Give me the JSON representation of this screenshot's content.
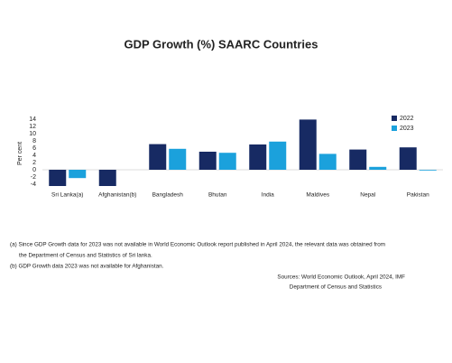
{
  "chart_data": {
    "type": "bar",
    "title": "GDP Growth (%)  SAARC Countries",
    "y_label": "Per cent",
    "categories": [
      "Sri Lanka(a)",
      "Afghanistan(b)",
      "Bangladesh",
      "Bhutan",
      "India",
      "Maldives",
      "Nepal",
      "Pakistan"
    ],
    "series": [
      {
        "name": "2022",
        "color": "#172a63",
        "values": [
          -4.5,
          -4.5,
          7.1,
          5.0,
          7.0,
          13.9,
          5.6,
          6.2
        ]
      },
      {
        "name": "2023",
        "color": "#1ba1dc",
        "values": [
          -2.3,
          null,
          5.8,
          4.7,
          7.8,
          4.4,
          0.8,
          -0.2
        ]
      }
    ],
    "ylim": [
      -5,
      15
    ],
    "yticks": [
      -4,
      -2,
      0,
      2,
      4,
      6,
      8,
      10,
      12,
      14
    ],
    "legend": "top-right",
    "footnotes": [
      "(a) Since GDP Growth data for 2023 was not available in World Economic Outlook report published in April 2024, the relevant data was obtained from",
      "the Department of Census and Statistics of Sri lanka.",
      "(b)  GDP Growth data 2023 was not available for Afghanistan."
    ],
    "sources": [
      "Sources: World Economic Outlook, April 2024, IMF",
      "Department of Census and Statistics"
    ]
  }
}
